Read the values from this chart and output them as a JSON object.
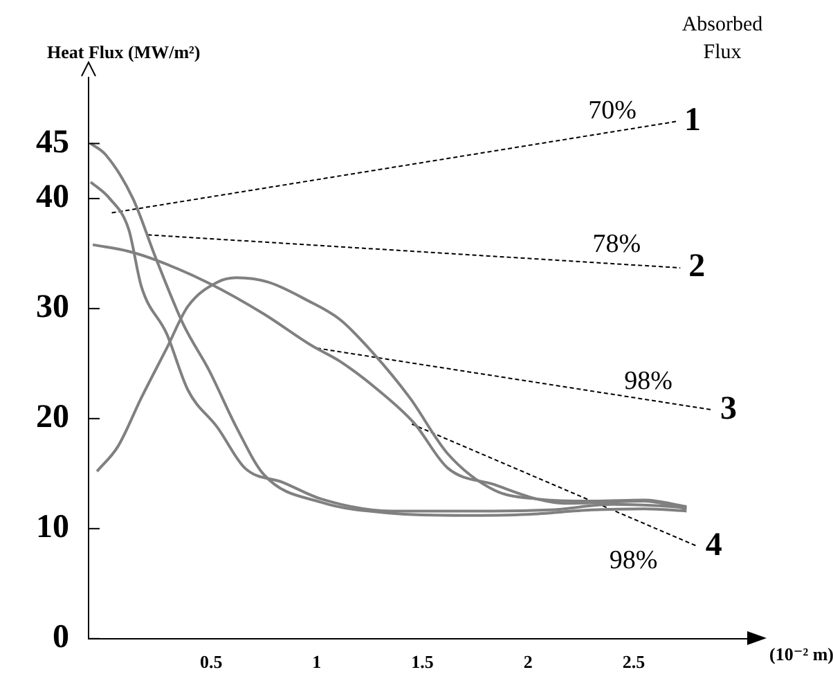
{
  "chart_data": {
    "type": "line",
    "ylabel": "Heat Flux (MW/m²)",
    "xlabel": "(10⁻² m)",
    "marker": "none",
    "line_style": "solid",
    "xlim": [
      -0.08,
      3.05
    ],
    "ylim": [
      0,
      51
    ],
    "xticks": [
      0.5,
      1,
      1.5,
      2,
      2.5
    ],
    "yticks": [
      0,
      10,
      20,
      30,
      40,
      45
    ],
    "annotations": [
      "Absorbed Flux",
      "70%",
      "78%",
      "98%",
      "98%"
    ],
    "series": [
      {
        "color": "#808080",
        "x": [
          -0.07,
          0.0,
          0.13,
          0.24,
          0.37,
          0.49,
          0.62,
          0.75,
          1.02,
          1.35,
          1.7,
          2.0,
          2.3,
          2.55,
          2.75
        ],
        "values": [
          45,
          44,
          40,
          34.5,
          28.5,
          24.4,
          19.2,
          14.9,
          12.4,
          11.4,
          11.2,
          11.3,
          11.7,
          11.8,
          11.6
        ]
      },
      {
        "color": "#808080",
        "x": [
          -0.07,
          0.02,
          0.11,
          0.17,
          0.29,
          0.39,
          0.53,
          0.66,
          0.84,
          1.02,
          1.35,
          1.7,
          2.1,
          2.4,
          2.6,
          2.75
        ],
        "values": [
          41.5,
          40,
          37.2,
          32,
          27.7,
          22.6,
          19.2,
          15.5,
          14.2,
          12.7,
          11.6,
          11.6,
          11.7,
          12.2,
          12.1,
          11.9
        ]
      },
      {
        "color": "#808080",
        "x": [
          -0.06,
          0.11,
          0.24,
          0.49,
          0.75,
          0.97,
          1.11,
          1.29,
          1.46,
          1.62,
          1.84,
          2.04,
          2.17,
          2.55,
          2.75
        ],
        "values": [
          35.8,
          35.2,
          34.4,
          32.3,
          29.5,
          26.7,
          25.2,
          22.6,
          19.6,
          15.5,
          14,
          12.7,
          12.3,
          12.5,
          11.8
        ]
      },
      {
        "color": "#808080",
        "x": [
          -0.04,
          0.06,
          0.17,
          0.29,
          0.39,
          0.53,
          0.62,
          0.77,
          0.95,
          1.11,
          1.26,
          1.44,
          1.62,
          1.84,
          2.04,
          2.31,
          2.55,
          2.75
        ],
        "values": [
          15.2,
          17.5,
          21.9,
          26.4,
          30.2,
          32.4,
          32.8,
          32.4,
          30.8,
          29,
          26.1,
          21.9,
          16.8,
          13.5,
          12.7,
          12.5,
          12.6,
          12
        ]
      },
      {
        "name": "1",
        "color": "#000000",
        "line_style": "dashed",
        "x": [
          0.03,
          2.7
        ],
        "values": [
          38.7,
          47
        ]
      },
      {
        "name": "2",
        "color": "#000000",
        "line_style": "dashed",
        "x": [
          0.2,
          2.72
        ],
        "values": [
          36.7,
          33.7
        ]
      },
      {
        "name": "3",
        "color": "#000000",
        "line_style": "dashed",
        "x": [
          1,
          2.87
        ],
        "values": [
          26.4,
          20.8
        ]
      },
      {
        "name": "4",
        "color": "#000000",
        "line_style": "dashed",
        "x": [
          1.45,
          2.8
        ],
        "values": [
          19.5,
          8.4
        ]
      }
    ]
  }
}
